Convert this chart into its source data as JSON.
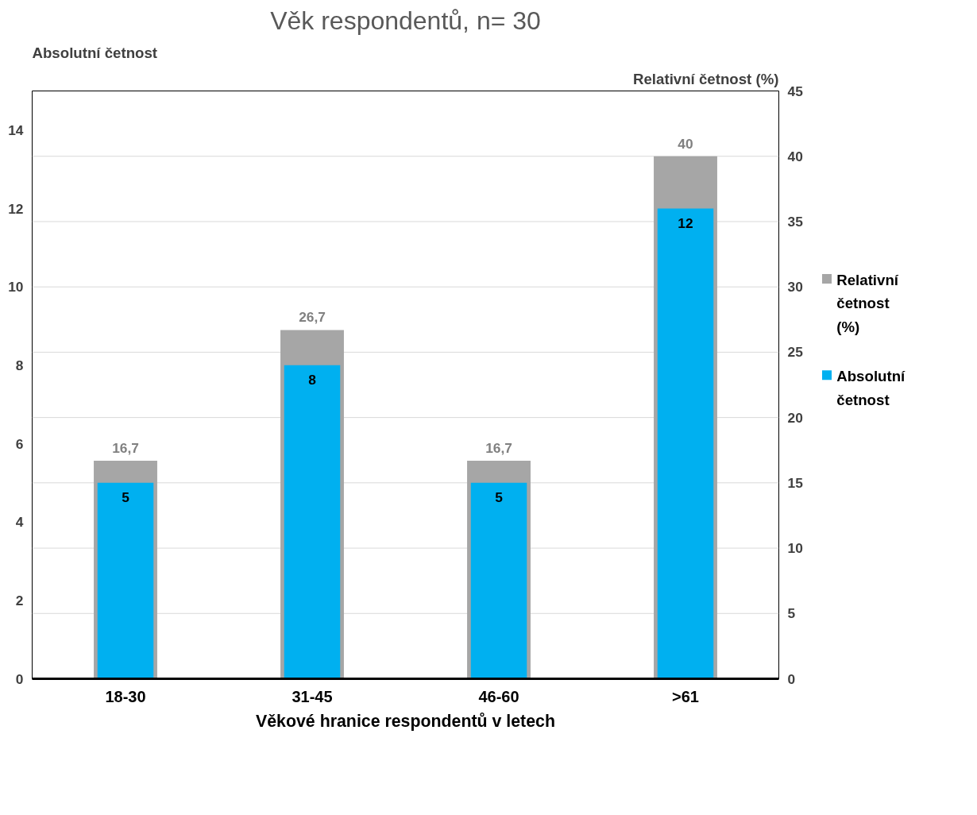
{
  "chart_data": {
    "type": "bar",
    "title": "Věk respondentů, n= 30",
    "xlabel": "Věkové hranice respondentů v letech",
    "ylabel": "Absolutní četnost",
    "y2label": "Relativní četnost (%)",
    "categories": [
      "18-30",
      "31-45",
      "46-60",
      ">61"
    ],
    "series": [
      {
        "name": "Relativní četnost (%)",
        "color": "#a6a6a6",
        "values": [
          16.7,
          26.7,
          16.7,
          40
        ],
        "axis": "y2",
        "value_labels": [
          "16,7",
          "26,7",
          "16,7",
          "40"
        ]
      },
      {
        "name": "Absolutní četnost",
        "color": "#00b0f0",
        "values": [
          5,
          8,
          5,
          12
        ],
        "value_labels": [
          "5",
          "8",
          "5",
          "12"
        ]
      }
    ],
    "ylim": [
      0,
      15
    ],
    "yticks": [
      0,
      2,
      4,
      6,
      8,
      10,
      12,
      14
    ],
    "y2lim": [
      0,
      45
    ],
    "y2ticks": [
      0,
      5,
      10,
      15,
      20,
      25,
      30,
      35,
      40,
      45
    ],
    "grid": "y2",
    "legend": "right"
  }
}
